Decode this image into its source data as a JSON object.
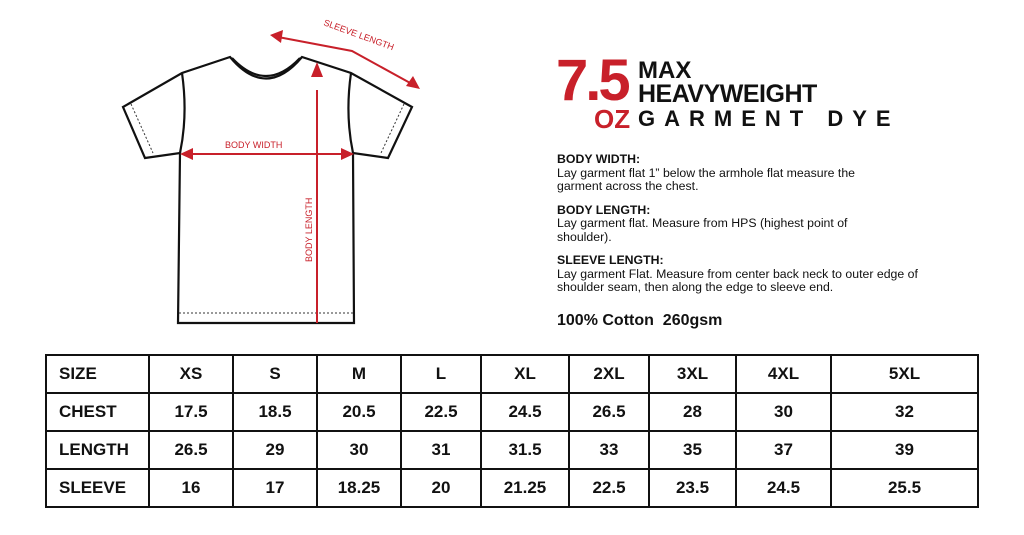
{
  "diagram": {
    "labels": {
      "sleeve_length": "SLEEVE LENGTH",
      "body_width": "BODY WIDTH",
      "body_length": "BODY LENGTH"
    },
    "accent_color": "#c8202a"
  },
  "logo": {
    "weight": "7.5",
    "unit": "OZ",
    "line1": "MAX",
    "line2": "HEAVYWEIGHT",
    "line3": "GARMENT DYE"
  },
  "instructions": [
    {
      "heading": "BODY WIDTH:",
      "text": "Lay garment flat 1” below the armhole flat measure the garment across the chest."
    },
    {
      "heading": "BODY LENGTH:",
      "text": "Lay garment flat. Measure from HPS (highest point of shoulder)."
    },
    {
      "heading": "SLEEVE LENGTH:",
      "text": "Lay garment Flat. Measure from center back neck to outer edge of shoulder seam, then along the edge to sleeve end."
    }
  ],
  "fabric": "100% Cotton  260gsm",
  "size_table": {
    "header": [
      "SIZE",
      "XS",
      "S",
      "M",
      "L",
      "XL",
      "2XL",
      "3XL",
      "4XL",
      "5XL"
    ],
    "rows": [
      [
        "CHEST",
        "17.5",
        "18.5",
        "20.5",
        "22.5",
        "24.5",
        "26.5",
        "28",
        "30",
        "32"
      ],
      [
        "LENGTH",
        "26.5",
        "29",
        "30",
        "31",
        "31.5",
        "33",
        "35",
        "37",
        "39"
      ],
      [
        "SLEEVE",
        "16",
        "17",
        "18.25",
        "20",
        "21.25",
        "22.5",
        "23.5",
        "24.5",
        "25.5"
      ]
    ]
  }
}
